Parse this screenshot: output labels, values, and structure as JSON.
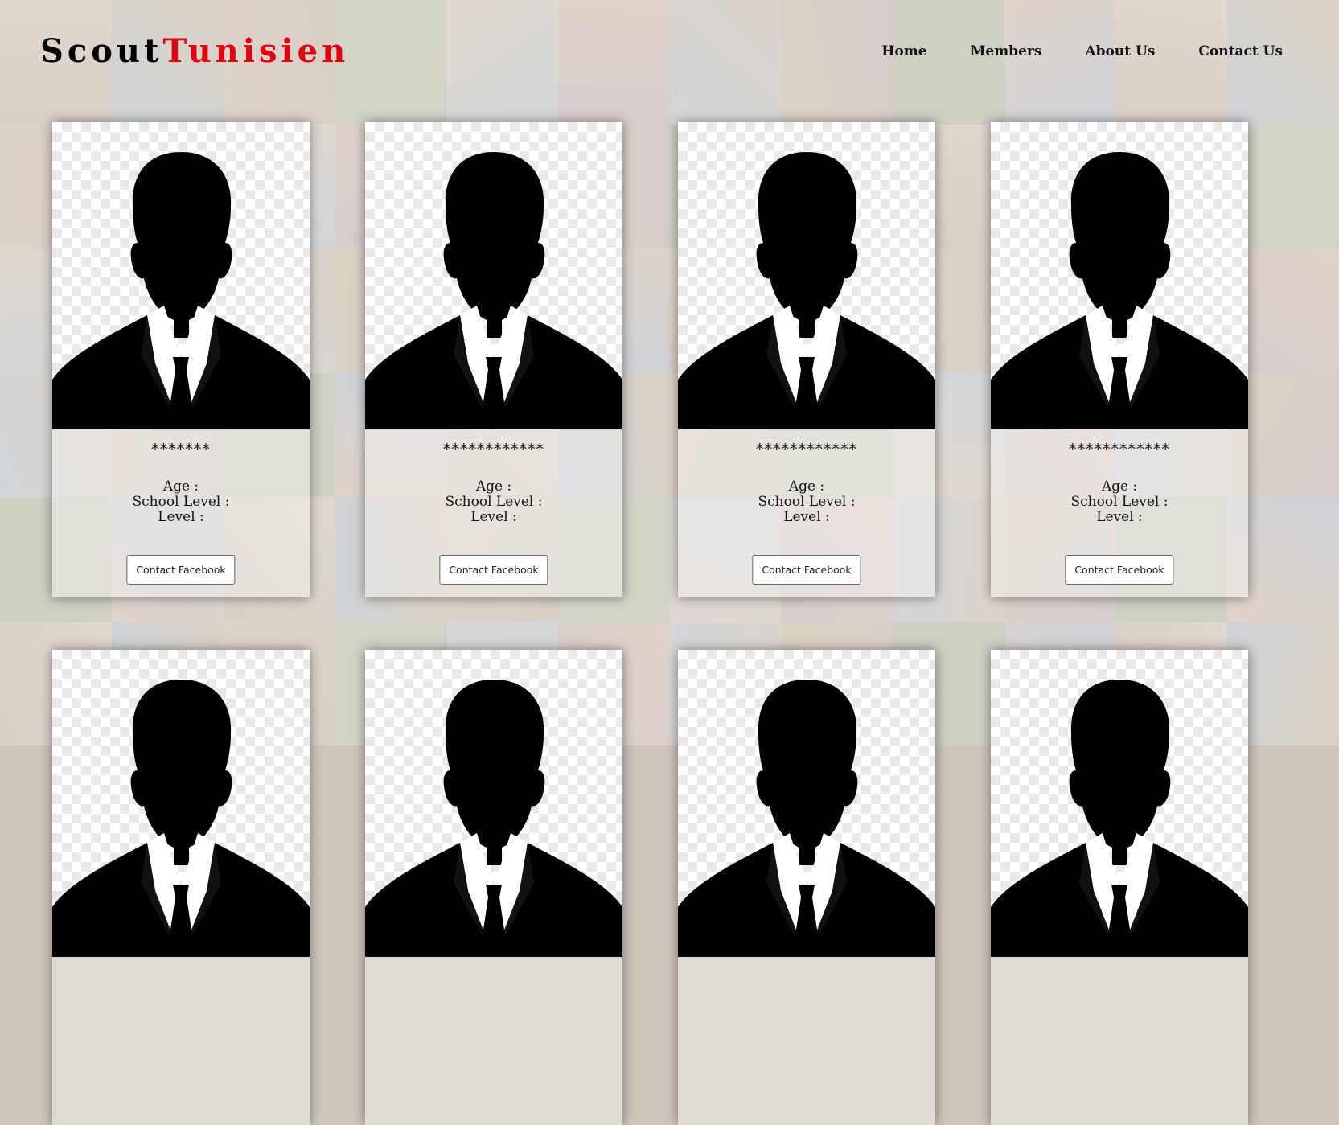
{
  "brand": {
    "part1": "Scout",
    "part2": "Tunisien",
    "color1": "#000000",
    "color2": "#e0000f"
  },
  "nav": [
    {
      "label": "Home"
    },
    {
      "label": "Members"
    },
    {
      "label": "About Us"
    },
    {
      "label": "Contact Us"
    }
  ],
  "members": [
    {
      "name": "*******",
      "age_label": "Age :",
      "school_label": "School Level :",
      "level_label": "Level :",
      "button": "Contact Facebook"
    },
    {
      "name": "************",
      "age_label": "Age :",
      "school_label": "School Level :",
      "level_label": "Level :",
      "button": "Contact Facebook"
    },
    {
      "name": "************",
      "age_label": "Age :",
      "school_label": "School Level :",
      "level_label": "Level :",
      "button": "Contact Facebook"
    },
    {
      "name": "************",
      "age_label": "Age :",
      "school_label": "School Level :",
      "level_label": "Level :",
      "button": "Contact Facebook"
    },
    {
      "name": "",
      "age_label": "",
      "school_label": "",
      "level_label": "",
      "button": ""
    },
    {
      "name": "",
      "age_label": "",
      "school_label": "",
      "level_label": "",
      "button": ""
    },
    {
      "name": "",
      "age_label": "",
      "school_label": "",
      "level_label": "",
      "button": ""
    },
    {
      "name": "",
      "age_label": "",
      "school_label": "",
      "level_label": "",
      "button": ""
    }
  ],
  "icons": {
    "avatar": "person-silhouette-icon"
  }
}
